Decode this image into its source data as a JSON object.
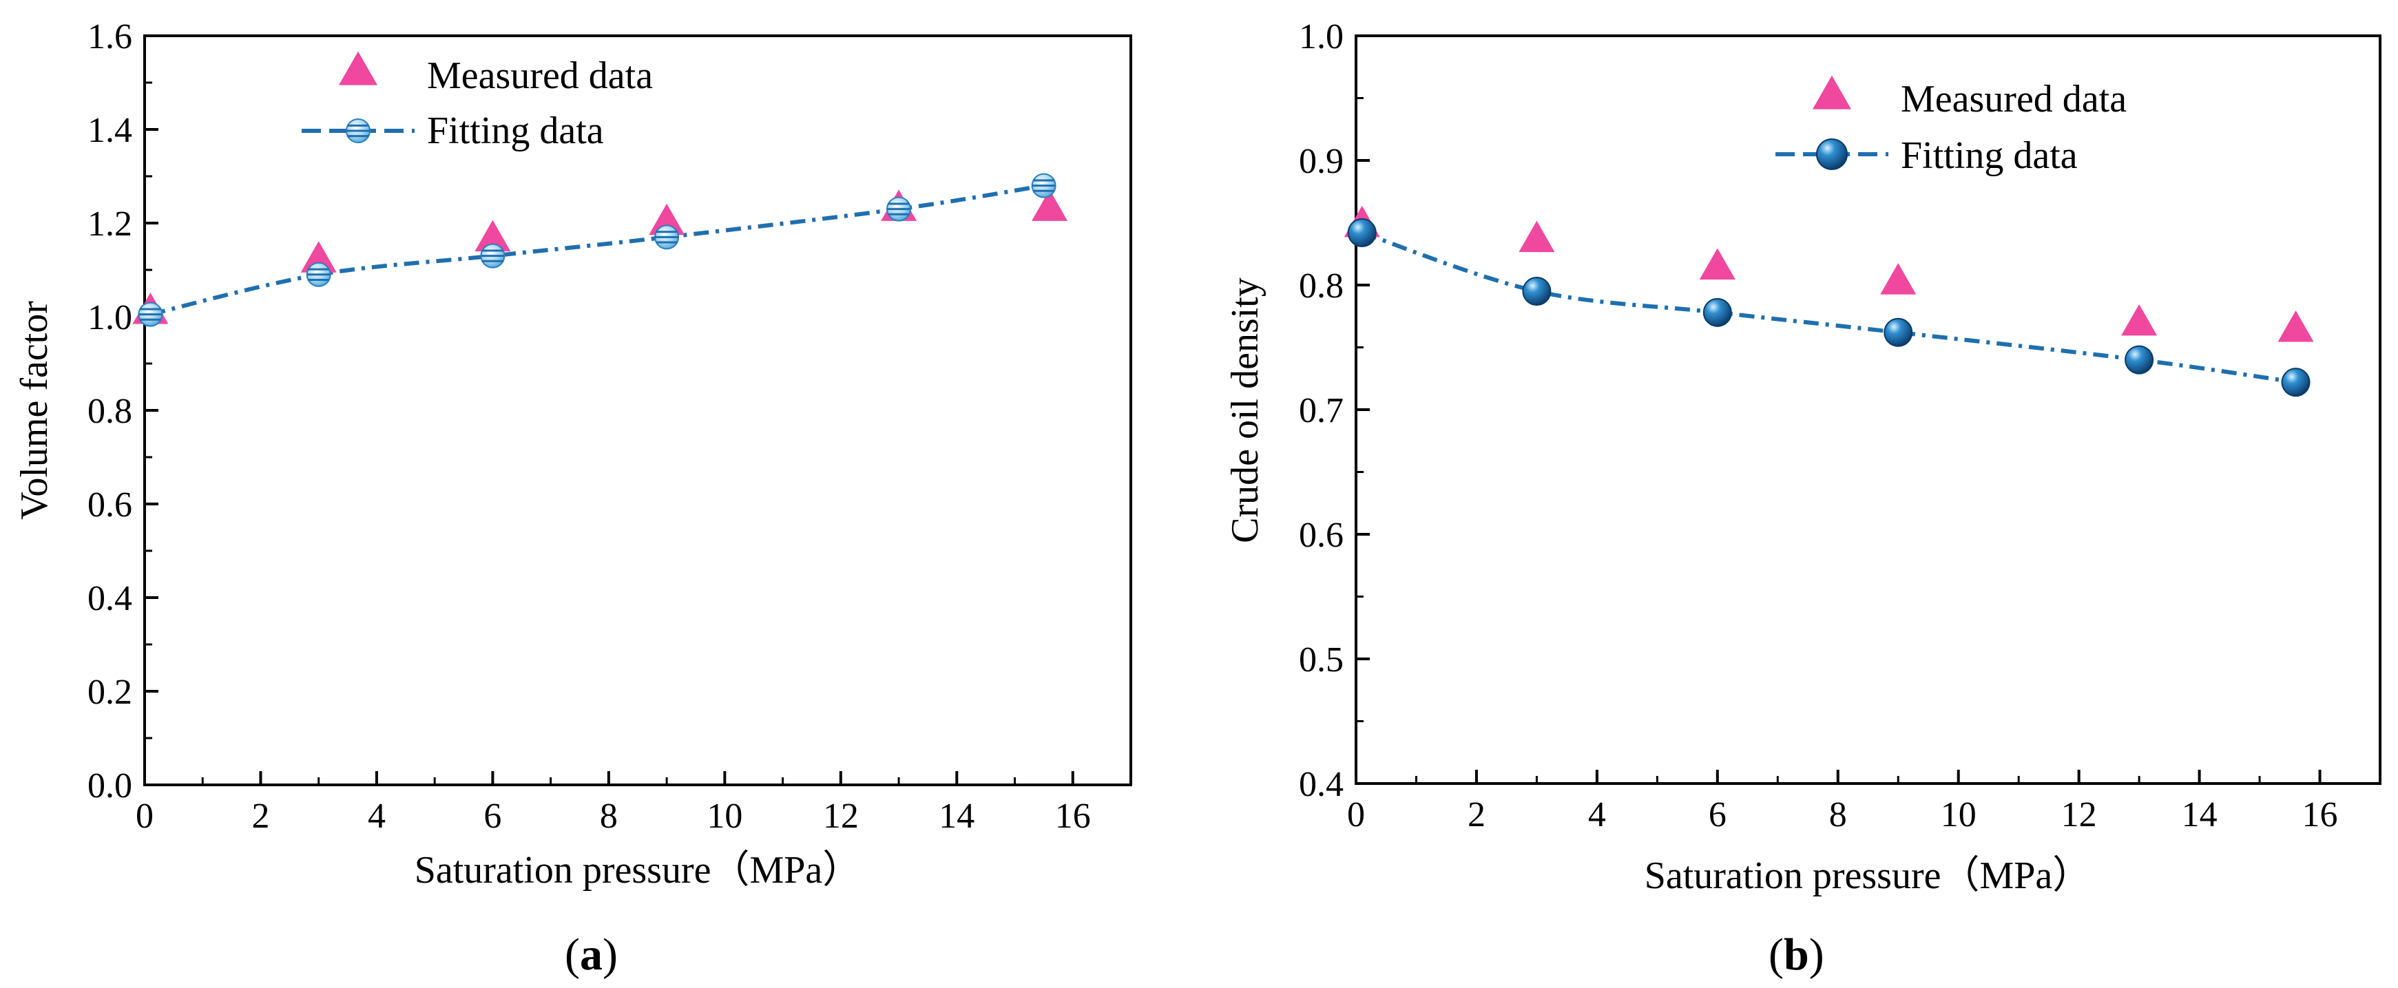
{
  "chart_data": [
    {
      "type": "line",
      "panel_label": "a",
      "xlabel": "Saturation pressure（MPa）",
      "ylabel": "Volume factor",
      "xlim": [
        0,
        17
      ],
      "ylim": [
        0.0,
        1.6
      ],
      "xticks": [
        0,
        2,
        4,
        6,
        8,
        10,
        12,
        14,
        16
      ],
      "yticks": [
        0.0,
        0.2,
        0.4,
        0.6,
        0.8,
        1.0,
        1.2,
        1.4,
        1.6
      ],
      "xtick_labels": [
        "0",
        "2",
        "4",
        "6",
        "8",
        "10",
        "12",
        "14",
        "16"
      ],
      "ytick_labels": [
        "0.0",
        "0.2",
        "0.4",
        "0.6",
        "0.8",
        "1.0",
        "1.2",
        "1.4",
        "1.6"
      ],
      "legend_position": "top-left",
      "series": [
        {
          "name": "Measured data",
          "marker": "triangle",
          "color": "#f0479f",
          "x": [
            0.1,
            3,
            6,
            9,
            13,
            15.6
          ],
          "y": [
            1.01,
            1.12,
            1.165,
            1.2,
            1.23,
            1.23
          ]
        },
        {
          "name": "Fitting data",
          "marker": "striped-circle",
          "line": "dash-dot",
          "color": "#1f6fae",
          "x": [
            0.1,
            3,
            6,
            9,
            13,
            15.5
          ],
          "y": [
            1.005,
            1.09,
            1.13,
            1.17,
            1.23,
            1.28
          ]
        }
      ]
    },
    {
      "type": "line",
      "panel_label": "b",
      "xlabel": "Saturation pressure（MPa）",
      "ylabel": "Crude oil density",
      "xlim": [
        0,
        17
      ],
      "ylim": [
        0.4,
        1.0
      ],
      "xticks": [
        0,
        2,
        4,
        6,
        8,
        10,
        12,
        14,
        16
      ],
      "yticks": [
        0.4,
        0.5,
        0.6,
        0.7,
        0.8,
        0.9,
        1.0
      ],
      "xtick_labels": [
        "0",
        "2",
        "4",
        "6",
        "8",
        "10",
        "12",
        "14",
        "16"
      ],
      "ytick_labels": [
        "0.4",
        "0.5",
        "0.6",
        "0.7",
        "0.8",
        "0.9",
        "1.0"
      ],
      "legend_position": "top-right",
      "series": [
        {
          "name": "Measured data",
          "marker": "triangle",
          "color": "#f0479f",
          "x": [
            0.1,
            3,
            6,
            9,
            13,
            15.6
          ],
          "y": [
            0.848,
            0.836,
            0.814,
            0.802,
            0.769,
            0.764
          ]
        },
        {
          "name": "Fitting data",
          "marker": "ball",
          "line": "dash-dot",
          "color": "#1f6fae",
          "x": [
            0.1,
            3,
            6,
            9,
            13,
            15.6
          ],
          "y": [
            0.842,
            0.795,
            0.778,
            0.762,
            0.74,
            0.722
          ]
        }
      ]
    }
  ]
}
